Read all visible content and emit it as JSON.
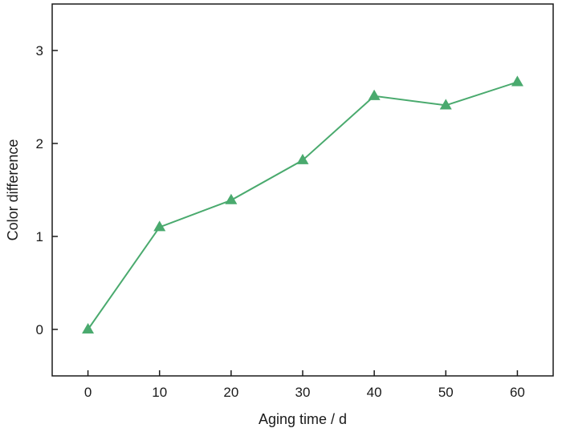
{
  "chart_data": {
    "type": "line",
    "title": "",
    "xlabel": "Aging time / d",
    "ylabel": "Color difference",
    "xlim": [
      -5,
      65
    ],
    "ylim": [
      -0.5,
      3.5
    ],
    "xticks": [
      0,
      10,
      20,
      30,
      40,
      50,
      60
    ],
    "yticks": [
      0,
      1,
      2,
      3
    ],
    "grid": false,
    "legend": "none",
    "series": [
      {
        "marker": "triangle",
        "color": "#4aaa6e",
        "x": [
          0,
          10,
          20,
          30,
          40,
          50,
          60
        ],
        "y": [
          0.0,
          1.1,
          1.39,
          1.82,
          2.51,
          2.41,
          2.66
        ]
      }
    ]
  }
}
